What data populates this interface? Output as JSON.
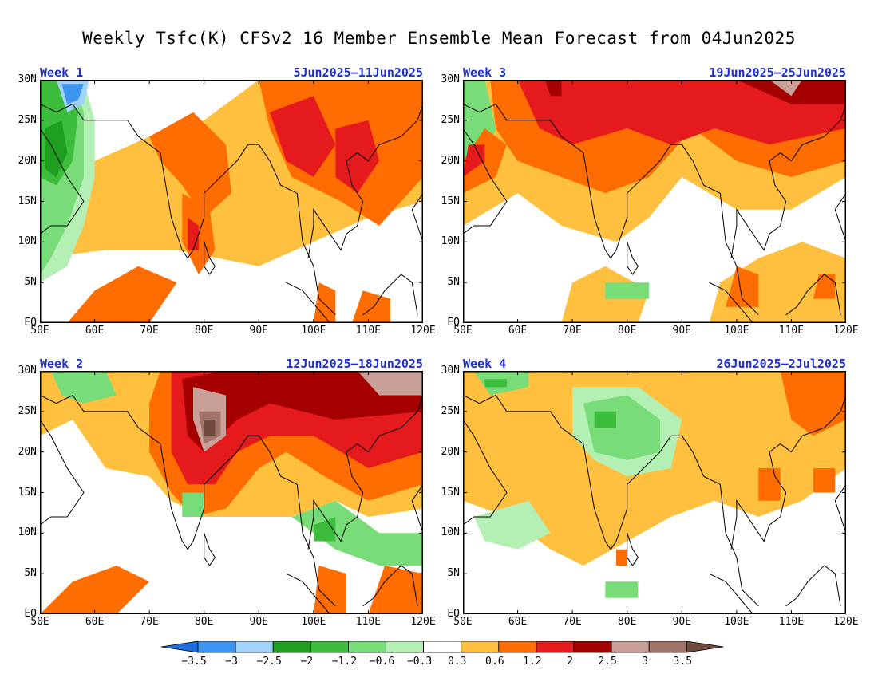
{
  "title": "Weekly Tsfc(K) CFSv2 16 Member Ensemble Mean Forecast from 04Jun2025",
  "panels": [
    {
      "week": "Week 1",
      "dates": "5Jun2025–11Jun2025"
    },
    {
      "week": "Week 3",
      "dates": "19Jun2025–25Jun2025"
    },
    {
      "week": "Week 2",
      "dates": "12Jun2025–18Jun2025"
    },
    {
      "week": "Week 4",
      "dates": "26Jun2025–2Jul2025"
    }
  ],
  "lat_labels": [
    "30N",
    "25N",
    "20N",
    "15N",
    "10N",
    "5N",
    "EQ"
  ],
  "lon_labels": [
    "50E",
    "60E",
    "70E",
    "80E",
    "90E",
    "100E",
    "110E",
    "120E"
  ],
  "colorbar": {
    "ticks": [
      "−3.5",
      "−3",
      "−2.5",
      "−2",
      "−1.2",
      "−0.6",
      "−0.3",
      "0.3",
      "0.6",
      "1.2",
      "2",
      "2.5",
      "3",
      "3.5"
    ],
    "colors": [
      "#1e6ee0",
      "#3c96f0",
      "#a0d2fa",
      "#1e9e1e",
      "#3cbe3c",
      "#78dc78",
      "#b4f0b4",
      "#ffffff",
      "#ffc040",
      "#ff6c00",
      "#e41a1c",
      "#a50000",
      "#c8a098",
      "#a07468",
      "#6e4a3c"
    ]
  }
}
